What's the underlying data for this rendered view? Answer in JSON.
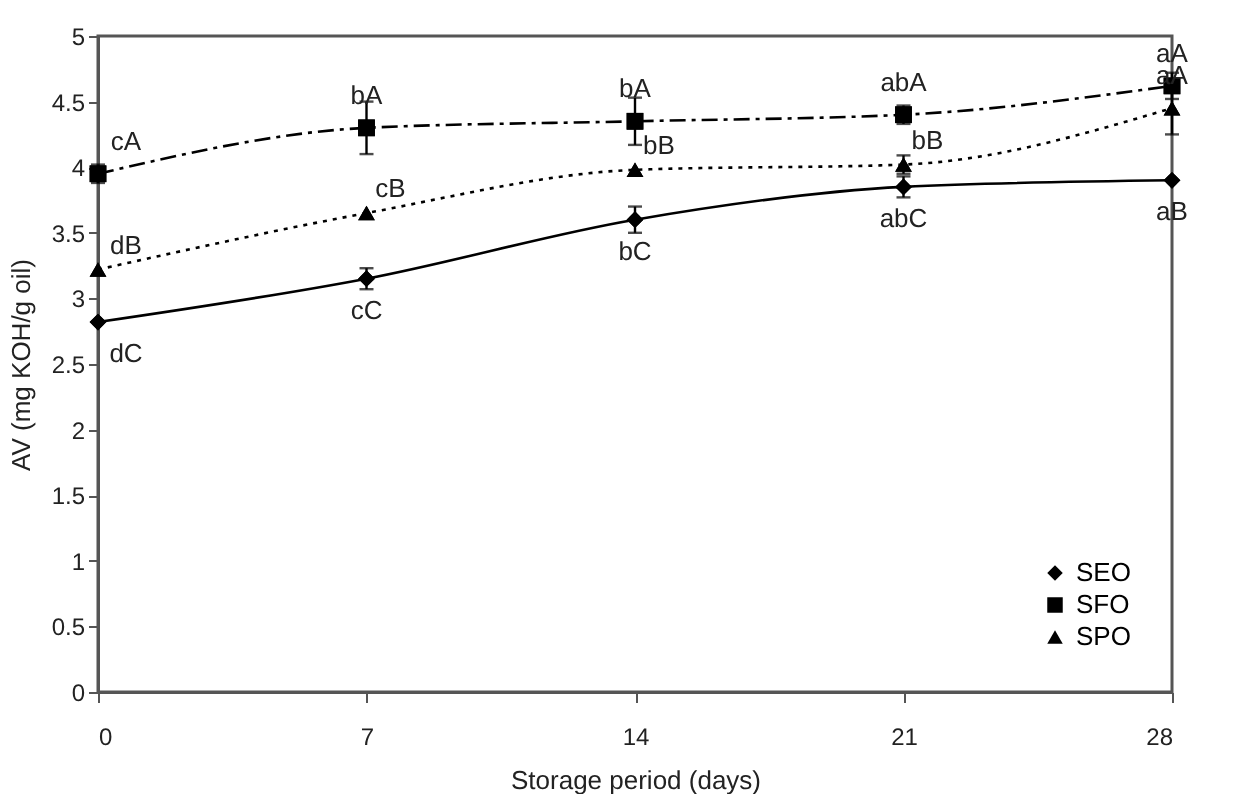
{
  "chart_data": {
    "type": "line",
    "xlabel": "Storage period (days)",
    "ylabel": "AV (mg KOH/g oil)",
    "x": [
      0,
      7,
      14,
      21,
      28
    ],
    "series": [
      {
        "name": "SEO",
        "color": "#000000",
        "marker": "diamond",
        "line_style": "solid",
        "values": [
          2.82,
          3.15,
          3.6,
          3.85,
          3.9
        ],
        "errors": [
          null,
          0.08,
          0.1,
          0.08,
          null
        ]
      },
      {
        "name": "SFO",
        "color": "#000000",
        "marker": "square",
        "line_style": "dashdot",
        "values": [
          3.95,
          4.3,
          4.35,
          4.4,
          4.62
        ],
        "errors": [
          0.07,
          0.2,
          0.18,
          0.07,
          0.1
        ]
      },
      {
        "name": "SPO",
        "color": "#000000",
        "marker": "triangle",
        "line_style": "dotted",
        "values": [
          3.22,
          3.65,
          3.98,
          4.02,
          4.45
        ],
        "errors": [
          null,
          null,
          null,
          0.07,
          0.2
        ]
      }
    ],
    "xlim": [
      0,
      28
    ],
    "xticks": [
      0,
      7,
      14,
      21,
      28
    ],
    "ylim": [
      0,
      5
    ],
    "yticks": [
      0,
      0.5,
      1,
      1.5,
      2,
      2.5,
      3,
      3.5,
      4,
      4.5,
      5
    ],
    "grid": false,
    "legend": "bottom right",
    "annotations": [
      {
        "text": "cA",
        "x": 0,
        "y": 3.95
      },
      {
        "text": "dB",
        "x": 0,
        "y": 3.22
      },
      {
        "text": "dC",
        "x": 0,
        "y": 2.82
      },
      {
        "text": "bA",
        "x": 7,
        "y": 4.3
      },
      {
        "text": "cB",
        "x": 7,
        "y": 3.65
      },
      {
        "text": "cC",
        "x": 7,
        "y": 3.15
      },
      {
        "text": "bA",
        "x": 14,
        "y": 4.35
      },
      {
        "text": "bB",
        "x": 14,
        "y": 3.98
      },
      {
        "text": "bC",
        "x": 14,
        "y": 3.6
      },
      {
        "text": "abA",
        "x": 21,
        "y": 4.4
      },
      {
        "text": "bB",
        "x": 21,
        "y": 4.02
      },
      {
        "text": "abC",
        "x": 21,
        "y": 3.85
      },
      {
        "text": "aA",
        "x": 28,
        "y": 4.62
      },
      {
        "text": "aA",
        "x": 28,
        "y": 4.45
      },
      {
        "text": "aB",
        "x": 28,
        "y": 3.9
      }
    ]
  }
}
